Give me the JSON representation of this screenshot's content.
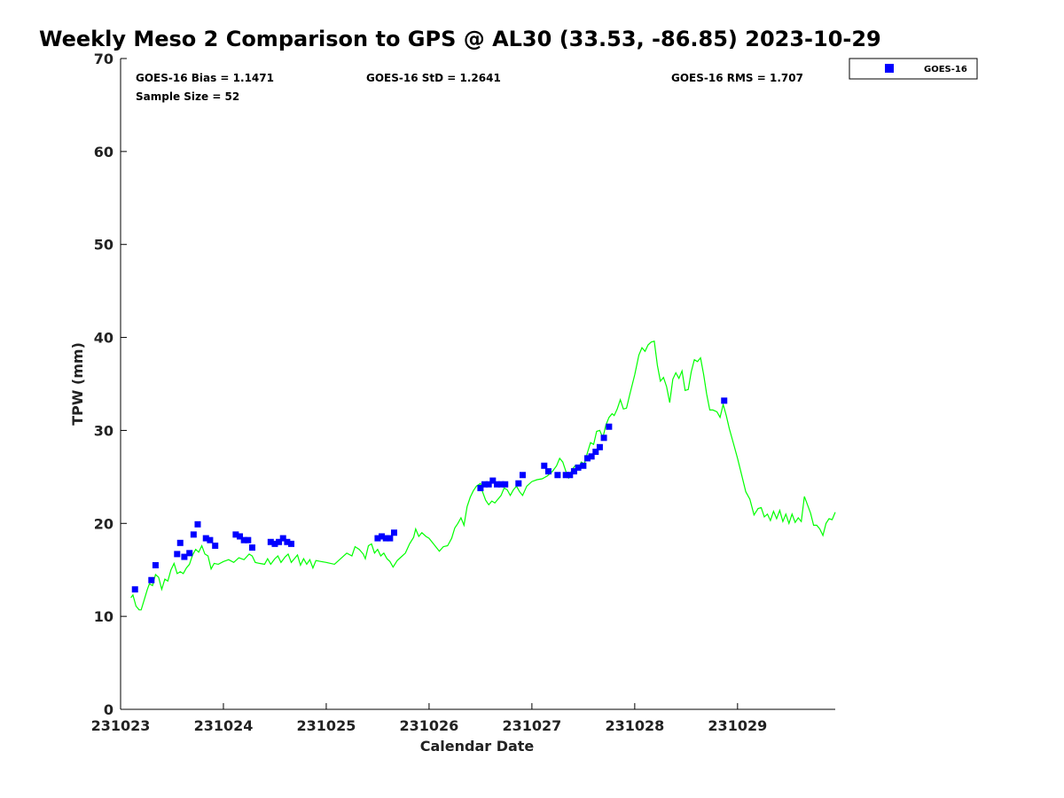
{
  "chart_data": {
    "type": "scatter",
    "title": "Weekly Meso 2 Comparison to GPS @ AL30 (33.53, -86.85) 2023-10-29",
    "xlabel": "Calendar Date",
    "ylabel": "TPW (mm)",
    "xlim": [
      0,
      6.95
    ],
    "ylim": [
      0,
      70
    ],
    "x_tick_values": [
      0,
      1,
      2,
      3,
      4,
      5,
      6
    ],
    "x_tick_labels": [
      "231023",
      "231024",
      "231025",
      "231026",
      "231027",
      "231028",
      "231029"
    ],
    "y_ticks": [
      0,
      10,
      20,
      30,
      40,
      50,
      60,
      70
    ],
    "x_units": "days after 2023-10-23 00Z",
    "grid": false,
    "legend_position": "top-right",
    "stats": {
      "bias": "GOES-16 Bias = 1.1471",
      "std": "GOES-16 StD = 1.2641",
      "rms": "GOES-16 RMS = 1.707",
      "sample": "Sample Size = 52"
    },
    "series": [
      {
        "name": "GOES-16",
        "kind": "scatter",
        "color": "#0000ff",
        "marker": "square",
        "points": [
          [
            0.14,
            12.9
          ],
          [
            0.3,
            13.9
          ],
          [
            0.34,
            15.5
          ],
          [
            0.55,
            16.7
          ],
          [
            0.58,
            17.9
          ],
          [
            0.62,
            16.4
          ],
          [
            0.67,
            16.8
          ],
          [
            0.71,
            18.8
          ],
          [
            0.75,
            19.9
          ],
          [
            0.83,
            18.4
          ],
          [
            0.87,
            18.2
          ],
          [
            0.92,
            17.6
          ],
          [
            1.12,
            18.8
          ],
          [
            1.16,
            18.6
          ],
          [
            1.2,
            18.2
          ],
          [
            1.24,
            18.2
          ],
          [
            1.28,
            17.4
          ],
          [
            1.46,
            18.0
          ],
          [
            1.5,
            17.8
          ],
          [
            1.54,
            18.0
          ],
          [
            1.58,
            18.4
          ],
          [
            1.62,
            18.0
          ],
          [
            1.66,
            17.8
          ],
          [
            2.5,
            18.4
          ],
          [
            2.54,
            18.6
          ],
          [
            2.58,
            18.4
          ],
          [
            2.62,
            18.4
          ],
          [
            2.66,
            19.0
          ],
          [
            3.5,
            23.8
          ],
          [
            3.54,
            24.2
          ],
          [
            3.58,
            24.2
          ],
          [
            3.62,
            24.6
          ],
          [
            3.66,
            24.2
          ],
          [
            3.7,
            24.2
          ],
          [
            3.74,
            24.2
          ],
          [
            3.87,
            24.3
          ],
          [
            3.91,
            25.2
          ],
          [
            4.12,
            26.2
          ],
          [
            4.16,
            25.6
          ],
          [
            4.25,
            25.2
          ],
          [
            4.33,
            25.2
          ],
          [
            4.37,
            25.2
          ],
          [
            4.41,
            25.6
          ],
          [
            4.45,
            26.0
          ],
          [
            4.5,
            26.2
          ],
          [
            4.54,
            27.0
          ],
          [
            4.58,
            27.2
          ],
          [
            4.62,
            27.7
          ],
          [
            4.66,
            28.2
          ],
          [
            4.7,
            29.2
          ],
          [
            4.75,
            30.4
          ],
          [
            5.87,
            33.2
          ]
        ]
      },
      {
        "name": "GPS",
        "kind": "line",
        "color": "#00ff00",
        "points": [
          [
            0.1,
            12.0
          ],
          [
            0.12,
            12.3
          ],
          [
            0.15,
            11.1
          ],
          [
            0.18,
            10.7
          ],
          [
            0.2,
            10.7
          ],
          [
            0.23,
            11.8
          ],
          [
            0.26,
            12.9
          ],
          [
            0.28,
            13.5
          ],
          [
            0.31,
            13.3
          ],
          [
            0.34,
            14.5
          ],
          [
            0.37,
            14.2
          ],
          [
            0.4,
            12.9
          ],
          [
            0.43,
            14.0
          ],
          [
            0.46,
            13.8
          ],
          [
            0.49,
            15.0
          ],
          [
            0.52,
            15.7
          ],
          [
            0.55,
            14.6
          ],
          [
            0.58,
            14.8
          ],
          [
            0.61,
            14.6
          ],
          [
            0.64,
            15.2
          ],
          [
            0.67,
            15.6
          ],
          [
            0.7,
            16.6
          ],
          [
            0.73,
            17.2
          ],
          [
            0.76,
            16.9
          ],
          [
            0.79,
            17.6
          ],
          [
            0.82,
            16.7
          ],
          [
            0.85,
            16.5
          ],
          [
            0.88,
            15.1
          ],
          [
            0.91,
            15.7
          ],
          [
            0.95,
            15.6
          ],
          [
            1.0,
            15.9
          ],
          [
            1.05,
            16.1
          ],
          [
            1.1,
            15.8
          ],
          [
            1.15,
            16.3
          ],
          [
            1.2,
            16.1
          ],
          [
            1.25,
            16.7
          ],
          [
            1.28,
            16.5
          ],
          [
            1.31,
            15.8
          ],
          [
            1.35,
            15.7
          ],
          [
            1.4,
            15.6
          ],
          [
            1.43,
            16.2
          ],
          [
            1.46,
            15.6
          ],
          [
            1.5,
            16.2
          ],
          [
            1.53,
            16.5
          ],
          [
            1.56,
            15.8
          ],
          [
            1.6,
            16.4
          ],
          [
            1.63,
            16.7
          ],
          [
            1.66,
            15.8
          ],
          [
            1.69,
            16.2
          ],
          [
            1.72,
            16.6
          ],
          [
            1.75,
            15.5
          ],
          [
            1.78,
            16.2
          ],
          [
            1.81,
            15.6
          ],
          [
            1.84,
            16.1
          ],
          [
            1.87,
            15.2
          ],
          [
            1.9,
            16.0
          ],
          [
            1.95,
            15.9
          ],
          [
            2.0,
            15.8
          ],
          [
            2.08,
            15.6
          ],
          [
            2.15,
            16.3
          ],
          [
            2.2,
            16.8
          ],
          [
            2.25,
            16.5
          ],
          [
            2.28,
            17.5
          ],
          [
            2.32,
            17.2
          ],
          [
            2.36,
            16.7
          ],
          [
            2.38,
            16.2
          ],
          [
            2.41,
            17.6
          ],
          [
            2.44,
            17.8
          ],
          [
            2.47,
            16.8
          ],
          [
            2.5,
            17.2
          ],
          [
            2.53,
            16.5
          ],
          [
            2.56,
            16.8
          ],
          [
            2.59,
            16.2
          ],
          [
            2.62,
            15.9
          ],
          [
            2.65,
            15.3
          ],
          [
            2.69,
            16.0
          ],
          [
            2.73,
            16.4
          ],
          [
            2.77,
            16.8
          ],
          [
            2.81,
            17.8
          ],
          [
            2.85,
            18.5
          ],
          [
            2.87,
            19.4
          ],
          [
            2.9,
            18.6
          ],
          [
            2.93,
            19.0
          ],
          [
            2.97,
            18.6
          ],
          [
            3.0,
            18.4
          ],
          [
            3.05,
            17.7
          ],
          [
            3.1,
            17.0
          ],
          [
            3.14,
            17.5
          ],
          [
            3.18,
            17.6
          ],
          [
            3.22,
            18.4
          ],
          [
            3.25,
            19.5
          ],
          [
            3.28,
            20.0
          ],
          [
            3.31,
            20.6
          ],
          [
            3.34,
            19.8
          ],
          [
            3.37,
            21.8
          ],
          [
            3.4,
            22.8
          ],
          [
            3.43,
            23.5
          ],
          [
            3.46,
            24.0
          ],
          [
            3.5,
            24.3
          ],
          [
            3.52,
            23.4
          ],
          [
            3.55,
            22.5
          ],
          [
            3.58,
            22.0
          ],
          [
            3.61,
            22.4
          ],
          [
            3.64,
            22.2
          ],
          [
            3.67,
            22.6
          ],
          [
            3.7,
            23.0
          ],
          [
            3.73,
            23.8
          ],
          [
            3.76,
            23.6
          ],
          [
            3.79,
            23.0
          ],
          [
            3.82,
            23.6
          ],
          [
            3.85,
            24.0
          ],
          [
            3.88,
            23.4
          ],
          [
            3.91,
            23.0
          ],
          [
            3.95,
            24.0
          ],
          [
            4.0,
            24.5
          ],
          [
            4.05,
            24.7
          ],
          [
            4.1,
            24.8
          ],
          [
            4.15,
            25.1
          ],
          [
            4.2,
            25.6
          ],
          [
            4.24,
            26.2
          ],
          [
            4.27,
            27.0
          ],
          [
            4.3,
            26.6
          ],
          [
            4.33,
            25.6
          ],
          [
            4.36,
            24.9
          ],
          [
            4.39,
            25.8
          ],
          [
            4.42,
            26.2
          ],
          [
            4.45,
            25.8
          ],
          [
            4.48,
            26.6
          ],
          [
            4.51,
            26.4
          ],
          [
            4.54,
            27.6
          ],
          [
            4.57,
            28.7
          ],
          [
            4.6,
            28.5
          ],
          [
            4.63,
            29.9
          ],
          [
            4.66,
            30.0
          ],
          [
            4.69,
            29.2
          ],
          [
            4.72,
            30.6
          ],
          [
            4.75,
            31.4
          ],
          [
            4.78,
            31.8
          ],
          [
            4.8,
            31.6
          ],
          [
            4.83,
            32.3
          ],
          [
            4.86,
            33.3
          ],
          [
            4.89,
            32.3
          ],
          [
            4.92,
            32.4
          ],
          [
            4.95,
            33.8
          ],
          [
            5.0,
            36.0
          ],
          [
            5.04,
            38.1
          ],
          [
            5.07,
            38.9
          ],
          [
            5.1,
            38.5
          ],
          [
            5.13,
            39.2
          ],
          [
            5.16,
            39.5
          ],
          [
            5.19,
            39.6
          ],
          [
            5.22,
            37.0
          ],
          [
            5.25,
            35.3
          ],
          [
            5.28,
            35.7
          ],
          [
            5.31,
            34.7
          ],
          [
            5.34,
            33.0
          ],
          [
            5.37,
            35.5
          ],
          [
            5.4,
            36.2
          ],
          [
            5.43,
            35.6
          ],
          [
            5.46,
            36.4
          ],
          [
            5.49,
            34.3
          ],
          [
            5.52,
            34.4
          ],
          [
            5.55,
            36.3
          ],
          [
            5.58,
            37.6
          ],
          [
            5.61,
            37.4
          ],
          [
            5.64,
            37.8
          ],
          [
            5.67,
            36.0
          ],
          [
            5.7,
            33.9
          ],
          [
            5.73,
            32.2
          ],
          [
            5.76,
            32.2
          ],
          [
            5.8,
            32.0
          ],
          [
            5.83,
            31.4
          ],
          [
            5.86,
            32.8
          ],
          [
            5.89,
            31.6
          ],
          [
            5.92,
            30.2
          ],
          [
            5.96,
            28.6
          ],
          [
            6.0,
            27.0
          ],
          [
            6.04,
            25.2
          ],
          [
            6.08,
            23.4
          ],
          [
            6.12,
            22.6
          ],
          [
            6.16,
            20.9
          ],
          [
            6.2,
            21.6
          ],
          [
            6.23,
            21.7
          ],
          [
            6.26,
            20.7
          ],
          [
            6.29,
            21.0
          ],
          [
            6.32,
            20.3
          ],
          [
            6.35,
            21.3
          ],
          [
            6.38,
            20.5
          ],
          [
            6.41,
            21.4
          ],
          [
            6.44,
            20.2
          ],
          [
            6.47,
            21.0
          ],
          [
            6.5,
            20.0
          ],
          [
            6.53,
            21.0
          ],
          [
            6.56,
            20.1
          ],
          [
            6.59,
            20.6
          ],
          [
            6.62,
            20.2
          ],
          [
            6.65,
            22.9
          ],
          [
            6.68,
            22.0
          ],
          [
            6.71,
            21.1
          ],
          [
            6.74,
            19.8
          ],
          [
            6.77,
            19.8
          ],
          [
            6.8,
            19.4
          ],
          [
            6.83,
            18.7
          ],
          [
            6.86,
            20.0
          ],
          [
            6.89,
            20.5
          ],
          [
            6.92,
            20.4
          ],
          [
            6.95,
            21.2
          ]
        ]
      }
    ]
  }
}
